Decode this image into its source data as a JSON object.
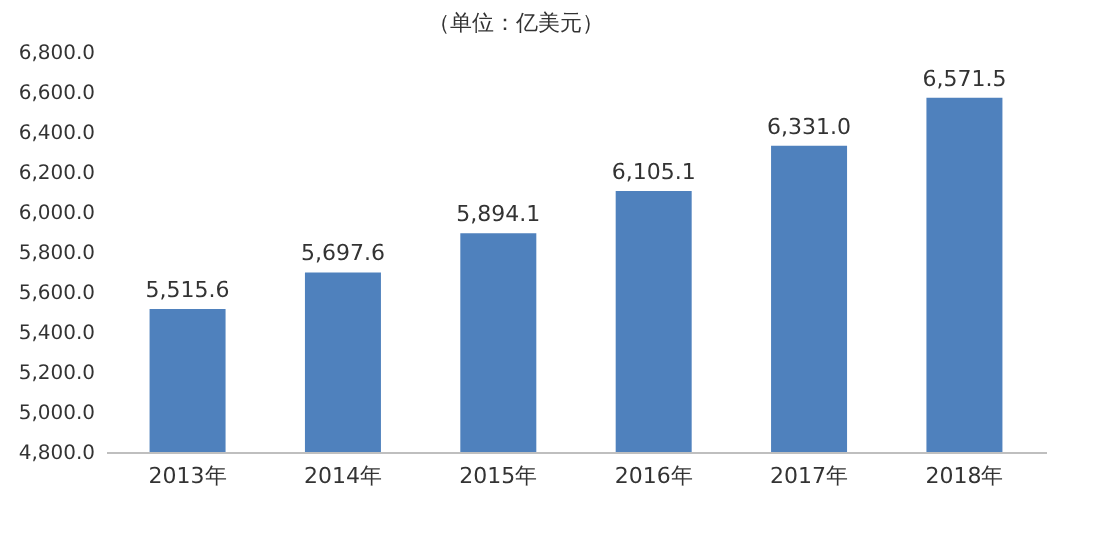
{
  "chart_data": {
    "type": "bar",
    "title": "（单位：亿美元）",
    "categories": [
      "2013年",
      "2014年",
      "2015年",
      "2016年",
      "2017年",
      "2018年"
    ],
    "values": [
      5515.6,
      5697.6,
      5894.1,
      6105.1,
      6331.0,
      6571.5
    ],
    "color": "#4f81bd",
    "value_labels": [
      "5,515.6",
      "5,697.6",
      "5,894.1",
      "6,105.1",
      "6,331.0",
      "6,571.5"
    ],
    "ylim": [
      4800,
      6800
    ],
    "yticks": [
      {
        "value": 4800,
        "label": "4,800.0"
      },
      {
        "value": 5000,
        "label": "5,000.0"
      },
      {
        "value": 5200,
        "label": "5,200.0"
      },
      {
        "value": 5400,
        "label": "5,400.0"
      },
      {
        "value": 5600,
        "label": "5,600.0"
      },
      {
        "value": 5800,
        "label": "5,800.0"
      },
      {
        "value": 6000,
        "label": "6,000.0"
      },
      {
        "value": 6200,
        "label": "6,200.0"
      },
      {
        "value": 6400,
        "label": "6,400.0"
      },
      {
        "value": 6600,
        "label": "6,600.0"
      },
      {
        "value": 6800,
        "label": "6,800.0"
      }
    ],
    "grid": false
  }
}
